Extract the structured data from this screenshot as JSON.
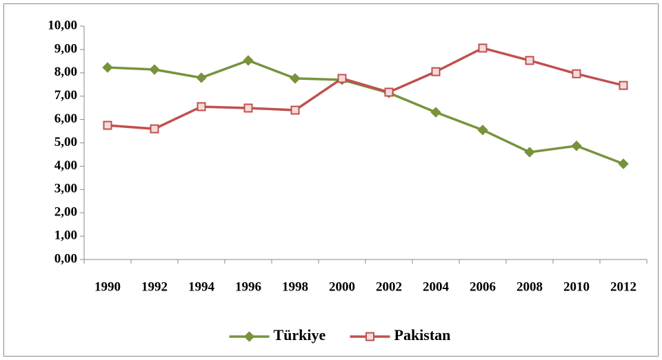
{
  "chart_data": {
    "type": "line",
    "categories": [
      "1990",
      "1992",
      "1994",
      "1996",
      "1998",
      "2000",
      "2002",
      "2004",
      "2006",
      "2008",
      "2010",
      "2012"
    ],
    "series": [
      {
        "name": "Türkiye",
        "color": "#77933c",
        "marker": "diamond",
        "values": [
          8.23,
          8.14,
          7.79,
          8.53,
          7.76,
          7.7,
          7.14,
          6.31,
          5.55,
          4.6,
          4.87,
          4.1
        ]
      },
      {
        "name": "Pakistan",
        "color": "#c0504d",
        "marker": "square",
        "values": [
          5.75,
          5.6,
          6.55,
          6.49,
          6.4,
          7.76,
          7.17,
          8.05,
          9.06,
          8.53,
          7.96,
          7.46
        ]
      }
    ],
    "ylim": [
      0,
      10
    ],
    "yticks": [
      {
        "value": 0,
        "label": "0,00"
      },
      {
        "value": 1,
        "label": "1,00"
      },
      {
        "value": 2,
        "label": "2,00"
      },
      {
        "value": 3,
        "label": "3,00"
      },
      {
        "value": 4,
        "label": "4,00"
      },
      {
        "value": 5,
        "label": "5,00"
      },
      {
        "value": 6,
        "label": "6,00"
      },
      {
        "value": 7,
        "label": "7,00"
      },
      {
        "value": 8,
        "label": "8,00"
      },
      {
        "value": 9,
        "label": "9,00"
      },
      {
        "value": 10,
        "label": "10,00"
      }
    ],
    "grid": false,
    "legend": "bottom"
  }
}
